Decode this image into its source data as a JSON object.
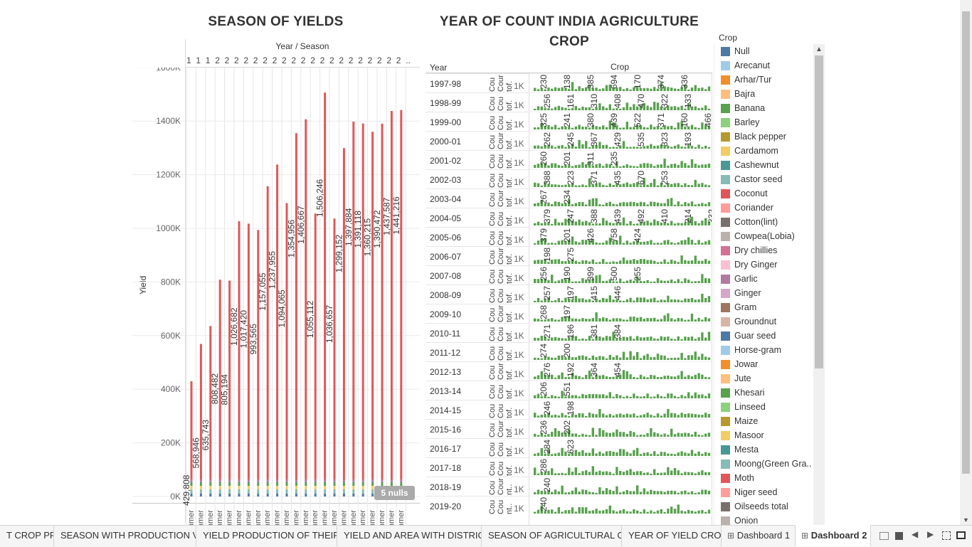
{
  "left_chart": {
    "title": "SEASON OF YIELDS",
    "header": "Year / Season",
    "y_axis_label": "Yield",
    "col_header_labels": [
      "1",
      "1",
      "1",
      "2",
      "2",
      "2",
      "2",
      "2",
      "2",
      "2",
      "2",
      "2",
      "2",
      "2",
      "2",
      "2",
      "2",
      "2",
      "2",
      "2",
      "2",
      "2",
      "2",
      ".."
    ],
    "x_tick_label": "nmer",
    "null_badge": "5 nulls"
  },
  "right_chart": {
    "title_line1": "YEAR OF COUNT INDIA AGRICULTURE",
    "title_line2": "CROP",
    "row_header": "Year",
    "col_header": "Crop",
    "col_cou": "Cou",
    "col_cour": "Cour",
    "col_tof": "tof.",
    "col_nt": "nt..",
    "unit_label": "1K"
  },
  "legend": {
    "title": "Crop",
    "items": [
      {
        "label": "Null",
        "color": "#4e79a7"
      },
      {
        "label": "Arecanut",
        "color": "#a0cbe8"
      },
      {
        "label": "Arhar/Tur",
        "color": "#f28e2b"
      },
      {
        "label": "Bajra",
        "color": "#ffbe7d"
      },
      {
        "label": "Banana",
        "color": "#59a14f"
      },
      {
        "label": "Barley",
        "color": "#8cd17d"
      },
      {
        "label": "Black pepper",
        "color": "#b6992d"
      },
      {
        "label": "Cardamom",
        "color": "#f1ce63"
      },
      {
        "label": "Cashewnut",
        "color": "#499894"
      },
      {
        "label": "Castor seed",
        "color": "#86bcb6"
      },
      {
        "label": "Coconut",
        "color": "#e15759"
      },
      {
        "label": "Coriander",
        "color": "#ff9d9a"
      },
      {
        "label": "Cotton(lint)",
        "color": "#79706e"
      },
      {
        "label": "Cowpea(Lobia)",
        "color": "#bab0ac"
      },
      {
        "label": "Dry chillies",
        "color": "#d37295"
      },
      {
        "label": "Dry Ginger",
        "color": "#fabfd2"
      },
      {
        "label": "Garlic",
        "color": "#b07aa1"
      },
      {
        "label": "Ginger",
        "color": "#d4a6c8"
      },
      {
        "label": "Gram",
        "color": "#9d7660"
      },
      {
        "label": "Groundnut",
        "color": "#d7b5a6"
      },
      {
        "label": "Guar seed",
        "color": "#4e79a7"
      },
      {
        "label": "Horse-gram",
        "color": "#a0cbe8"
      },
      {
        "label": "Jowar",
        "color": "#f28e2b"
      },
      {
        "label": "Jute",
        "color": "#ffbe7d"
      },
      {
        "label": "Khesari",
        "color": "#59a14f"
      },
      {
        "label": "Linseed",
        "color": "#8cd17d"
      },
      {
        "label": "Maize",
        "color": "#b6992d"
      },
      {
        "label": "Masoor",
        "color": "#f1ce63"
      },
      {
        "label": "Mesta",
        "color": "#499894"
      },
      {
        "label": "Moong(Green Gra..",
        "color": "#86bcb6"
      },
      {
        "label": "Moth",
        "color": "#e15759"
      },
      {
        "label": "Niger seed",
        "color": "#ff9d9a"
      },
      {
        "label": "Oilseeds total",
        "color": "#79706e"
      },
      {
        "label": "Onion",
        "color": "#bab0ac"
      }
    ]
  },
  "tabs": [
    {
      "label": "T CROP PR..."
    },
    {
      "label": "SEASON WITH PRODUCTION V..."
    },
    {
      "label": "YIELD PRODUCTION OF THEIR ..."
    },
    {
      "label": "YIELD AND AREA WITH DISTRICT"
    },
    {
      "label": "SEASON OF AGRICULTURAL C..."
    },
    {
      "label": "YEAR OF YIELD CROP"
    },
    {
      "label": "Dashboard 1"
    },
    {
      "label": "Dashboard 2"
    }
  ],
  "chart_data": [
    {
      "type": "bar",
      "title": "SEASON OF YIELDS",
      "xlabel": "Year / Season",
      "ylabel": "Yield",
      "ylim": [
        0,
        1650000
      ],
      "y_ticks": [
        "0K",
        "200K",
        "400K",
        "600K",
        "800K",
        "1000K",
        "1200K",
        "1400K",
        "1600K"
      ],
      "values": [
        429808,
        568946,
        635743,
        808482,
        805194,
        1026682,
        1017420,
        993565,
        1157055,
        1237955,
        1094065,
        1354956,
        1406667,
        1055112,
        1506246,
        1036657,
        1299152,
        1397884,
        1391118,
        1360215,
        1390472,
        1437587,
        1441216
      ],
      "value_labels": [
        "429,808",
        "568,946",
        "635,743",
        "808,482",
        "805,194",
        "1,026,682",
        "1,017,420",
        "993,565",
        "1,157,055",
        "1,237,955",
        "1,094,065",
        "1,354,956",
        "1,406,667",
        "1,055,112",
        "1,506,246",
        "1,036,657",
        "1,299,152",
        "1,397,884",
        "1,391,118",
        "1,360,215",
        "1,390,472",
        "1,437,587",
        "1,441,216"
      ],
      "grid": true
    },
    {
      "type": "bar",
      "title": "YEAR OF COUNT INDIA AGRICULTURE CROP",
      "row_header": "Year",
      "col_header": "Crop",
      "years": [
        "1997-98",
        "1998-99",
        "1999-00",
        "2000-01",
        "2001-02",
        "2002-03",
        "2003-04",
        "2004-05",
        "2005-06",
        "2006-07",
        "2007-08",
        "2008-09",
        "2009-10",
        "2010-11",
        "2011-12",
        "2012-13",
        "2013-14",
        "2014-15",
        "2015-16",
        "2016-17",
        "2017-18",
        "2018-19",
        "2019-20"
      ],
      "labels": [
        [
          "230",
          "138",
          "385",
          "694",
          "170",
          "374",
          "336"
        ],
        [
          "256",
          "161",
          "310",
          "408",
          "470",
          "322",
          "133"
        ],
        [
          "325",
          "241",
          "380",
          "439",
          "522",
          "371",
          "160",
          "466"
        ],
        [
          "262",
          "245",
          "367",
          "429",
          "535",
          "323",
          "193"
        ],
        [
          "260",
          "201",
          "311",
          "235"
        ],
        [
          "388",
          "223",
          "371",
          "435",
          "670",
          "253"
        ],
        [
          "267",
          "234"
        ],
        [
          "379",
          "247",
          "388",
          "439",
          "492",
          "410",
          "214",
          "332"
        ],
        [
          "379",
          "201",
          "426",
          "758",
          "424"
        ],
        [
          "198",
          "275"
        ],
        [
          "256",
          "190",
          "399",
          "500",
          "255"
        ],
        [
          "257",
          "197",
          "415",
          "446"
        ],
        [
          "268",
          "197"
        ],
        [
          "271",
          "196",
          "381",
          "384"
        ],
        [
          "274",
          "200"
        ],
        [
          "276",
          "192",
          "364",
          "454"
        ],
        [
          "206",
          "551"
        ],
        [
          "246",
          "198"
        ],
        [
          "236",
          "202"
        ],
        [
          "284",
          "623"
        ],
        [
          "286"
        ],
        [
          "240"
        ],
        [
          "240"
        ]
      ],
      "grid": true
    }
  ]
}
